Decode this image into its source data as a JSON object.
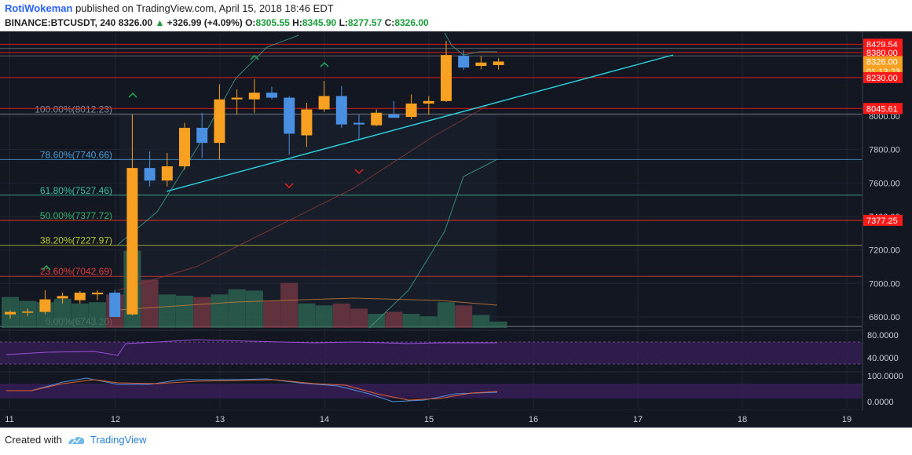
{
  "header": {
    "author": "RotiWokeman",
    "published_text": "published on TradingView.com, April 15, 2018 18:46 EDT",
    "symbol": "BINANCE:BTCUSDT, 240",
    "last_price": "8326.00",
    "change": "+326.99 (+4.09%)",
    "o_label": "O:",
    "o_value": "8305.55",
    "h_label": "H:",
    "h_value": "8345.90",
    "l_label": "L:",
    "l_value": "8277.57",
    "c_label": "C:",
    "c_value": "8326.00"
  },
  "footer": {
    "created_with": "Created with",
    "brand": "TradingView"
  },
  "colors": {
    "background": "#131722",
    "up_candle": "#f7a021",
    "down_candle": "#4a90e2",
    "trendline": "#2ad4e0",
    "red_level": "#ff2a2a",
    "rsi_band": "#3b1f5c",
    "stoch_band": "#3b1f5c"
  },
  "chart_data": {
    "type": "candlestick",
    "timeframe": "240",
    "x_tick_labels": [
      "11",
      "12",
      "13",
      "14",
      "15",
      "16",
      "17",
      "18",
      "19"
    ],
    "y_tick_labels": [
      "8000.00",
      "7800.00",
      "7600.00",
      "7400.00",
      "7200.00",
      "7000.00",
      "6800.00"
    ],
    "ylim": [
      6720,
      8560
    ],
    "candles": [
      {
        "o": 6815,
        "h": 6840,
        "l": 6790,
        "c": 6830
      },
      {
        "o": 6828,
        "h": 6850,
        "l": 6805,
        "c": 6832
      },
      {
        "o": 6830,
        "h": 6960,
        "l": 6815,
        "c": 6905
      },
      {
        "o": 6910,
        "h": 6945,
        "l": 6880,
        "c": 6925
      },
      {
        "o": 6900,
        "h": 6955,
        "l": 6880,
        "c": 6945
      },
      {
        "o": 6935,
        "h": 6960,
        "l": 6900,
        "c": 6945
      },
      {
        "o": 6945,
        "h": 6960,
        "l": 6810,
        "c": 6800
      },
      {
        "o": 6815,
        "h": 8010,
        "l": 6810,
        "c": 7690
      },
      {
        "o": 7690,
        "h": 7790,
        "l": 7580,
        "c": 7615
      },
      {
        "o": 7615,
        "h": 7780,
        "l": 7580,
        "c": 7700
      },
      {
        "o": 7700,
        "h": 7960,
        "l": 7680,
        "c": 7930
      },
      {
        "o": 7930,
        "h": 8020,
        "l": 7750,
        "c": 7840
      },
      {
        "o": 7840,
        "h": 8190,
        "l": 7740,
        "c": 8100
      },
      {
        "o": 8100,
        "h": 8160,
        "l": 8010,
        "c": 8110
      },
      {
        "o": 8100,
        "h": 8220,
        "l": 8020,
        "c": 8140
      },
      {
        "o": 8140,
        "h": 8175,
        "l": 8100,
        "c": 8110
      },
      {
        "o": 8110,
        "h": 8120,
        "l": 7770,
        "c": 7895
      },
      {
        "o": 7885,
        "h": 8080,
        "l": 7815,
        "c": 8040
      },
      {
        "o": 8040,
        "h": 8210,
        "l": 8025,
        "c": 8120
      },
      {
        "o": 8120,
        "h": 8180,
        "l": 7930,
        "c": 7950
      },
      {
        "o": 7960,
        "h": 8010,
        "l": 7855,
        "c": 7950
      },
      {
        "o": 7945,
        "h": 8040,
        "l": 7940,
        "c": 8020
      },
      {
        "o": 8010,
        "h": 8090,
        "l": 7990,
        "c": 7990
      },
      {
        "o": 7995,
        "h": 8130,
        "l": 7980,
        "c": 8075
      },
      {
        "o": 8075,
        "h": 8120,
        "l": 8010,
        "c": 8090
      },
      {
        "o": 8090,
        "h": 8450,
        "l": 8085,
        "c": 8365
      },
      {
        "o": 8360,
        "h": 8395,
        "l": 8275,
        "c": 8290
      },
      {
        "o": 8300,
        "h": 8360,
        "l": 8280,
        "c": 8320
      },
      {
        "o": 8305,
        "h": 8346,
        "l": 8278,
        "c": 8326
      }
    ],
    "volume": [
      48,
      42,
      40,
      45,
      38,
      40,
      52,
      120,
      75,
      52,
      50,
      48,
      52,
      60,
      58,
      42,
      70,
      38,
      35,
      38,
      30,
      22,
      25,
      22,
      18,
      40,
      35,
      20,
      10
    ],
    "fib_levels": [
      {
        "label": "100.00%(8012.23)",
        "price": 8012.23,
        "color": "#8a8f98"
      },
      {
        "label": "78.60%(7740.66)",
        "price": 7740.66,
        "color": "#4a9fd8"
      },
      {
        "label": "61.80%(7527.46)",
        "price": 7527.46,
        "color": "#3fbf9f"
      },
      {
        "label": "50.00%(7377.72)",
        "price": 7377.72,
        "color": "#2fb36a"
      },
      {
        "label": "38.20%(7227.97)",
        "price": 7227.97,
        "color": "#b8c832"
      },
      {
        "label": "23.60%(7042.69)",
        "price": 7042.69,
        "color": "#e03c3c"
      },
      {
        "label": "0.00%(6743.20)",
        "price": 6743.2,
        "color": "#8a8f98"
      }
    ],
    "price_tags": [
      {
        "label": "8429.54",
        "price": 8429.54,
        "bg": "#ff1a1a",
        "color": "#ffffff"
      },
      {
        "label": "8380.00",
        "price": 8380.0,
        "bg": "#ff1a1a",
        "color": "#ffffff"
      },
      {
        "label": "8326.00",
        "price": 8326.0,
        "bg": "#f7a021",
        "color": "#ffffff"
      },
      {
        "label": "01:13:23",
        "price": 8268,
        "bg": "#f7a021",
        "color": "#ffffff"
      },
      {
        "label": "8230.00",
        "price": 8230.0,
        "bg": "#ff1a1a",
        "color": "#ffffff"
      },
      {
        "label": "8045.61",
        "price": 8045.61,
        "bg": "#ff1a1a",
        "color": "#ffffff"
      },
      {
        "label": "7377.25",
        "price": 7377.25,
        "bg": "#ff1a1a",
        "color": "#ffffff"
      }
    ],
    "rsi_tick_labels": [
      "80.0000",
      "40.0000"
    ],
    "stoch_tick_labels": [
      "100.0000",
      "0.0000"
    ]
  }
}
